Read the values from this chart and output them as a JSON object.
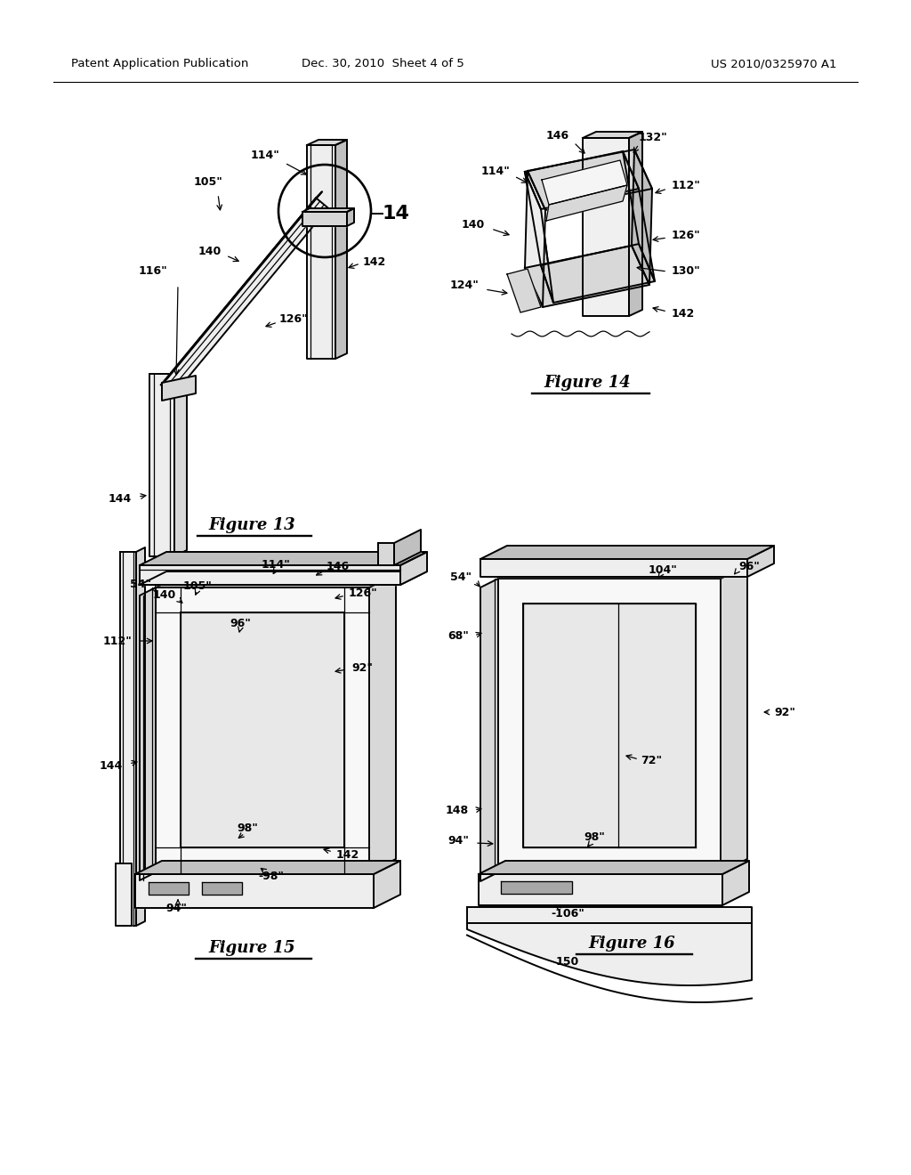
{
  "bg": "#ffffff",
  "lw": 1.4,
  "lw_thin": 0.9,
  "black": "#000000",
  "fill_light": "#eeeeee",
  "fill_mid": "#d8d8d8",
  "fill_dark": "#c0c0c0",
  "fill_darker": "#a8a8a8",
  "header_left": "Patent Application Publication",
  "header_mid": "Dec. 30, 2010  Sheet 4 of 5",
  "header_right": "US 2010/0325970 A1"
}
